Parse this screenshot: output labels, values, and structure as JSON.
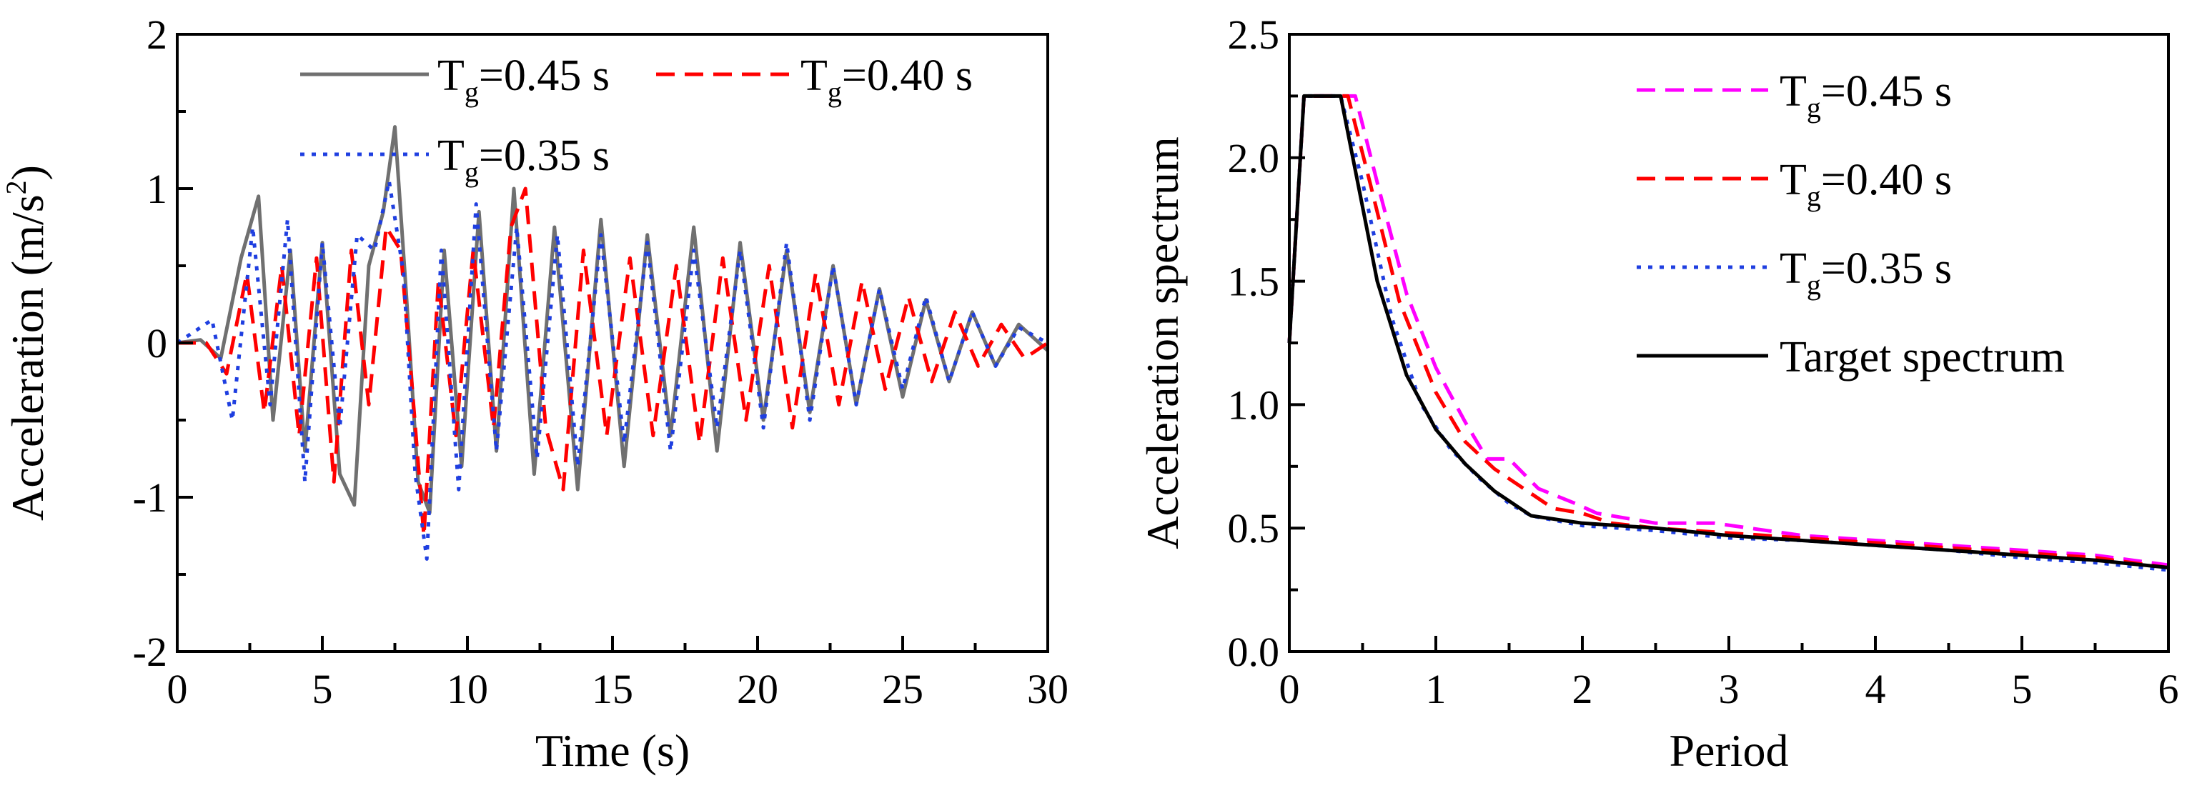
{
  "chart_data": [
    {
      "type": "line",
      "xlabel": "Time (s)",
      "ylabel_main": "Acceleration (m/s",
      "ylabel_sup": "2",
      "ylabel_close": ")",
      "xlim": [
        0,
        30
      ],
      "ylim": [
        -2,
        2
      ],
      "xticks": [
        0,
        5,
        10,
        15,
        20,
        25,
        30
      ],
      "yticks": [
        -2,
        -1,
        0,
        1,
        2
      ],
      "xtick_labels": [
        "0",
        "5",
        "10",
        "15",
        "20",
        "25",
        "30"
      ],
      "ytick_labels": [
        "-2",
        "-1",
        "0",
        "1",
        "2"
      ],
      "grid": false,
      "legend_placement": "top",
      "series": [
        {
          "name": "Tg=0.45 s",
          "label_main": "T",
          "label_sub": "g",
          "label_rest": "=0.45 s",
          "color": "#707070",
          "dash": "solid",
          "x": [
            0,
            0.8,
            1.5,
            2.2,
            2.8,
            3.3,
            3.9,
            4.4,
            5.0,
            5.6,
            6.1,
            6.6,
            7.1,
            7.5,
            7.9,
            8.3,
            8.7,
            9.2,
            9.8,
            10.4,
            11.0,
            11.6,
            12.3,
            13.0,
            13.8,
            14.6,
            15.4,
            16.2,
            17.0,
            17.8,
            18.6,
            19.4,
            20.2,
            21.0,
            21.8,
            22.6,
            23.4,
            24.2,
            25.0,
            25.8,
            26.6,
            27.4,
            28.2,
            29.0,
            30.0
          ],
          "y": [
            0,
            0.02,
            -0.1,
            0.55,
            0.95,
            -0.5,
            0.6,
            -0.7,
            0.65,
            -0.85,
            -1.05,
            0.5,
            0.85,
            1.4,
            0.3,
            -0.9,
            -1.1,
            0.6,
            -0.8,
            0.85,
            -0.7,
            1.0,
            -0.85,
            0.75,
            -0.95,
            0.8,
            -0.8,
            0.7,
            -0.6,
            0.75,
            -0.7,
            0.65,
            -0.5,
            0.6,
            -0.45,
            0.5,
            -0.4,
            0.35,
            -0.35,
            0.28,
            -0.25,
            0.2,
            -0.15,
            0.12,
            -0.05
          ]
        },
        {
          "name": "Tg=0.40 s",
          "label_main": "T",
          "label_sub": "g",
          "label_rest": "=0.40 s",
          "color": "#ff0000",
          "dash": "dashed",
          "x": [
            0,
            1.0,
            1.7,
            2.4,
            3.0,
            3.6,
            4.2,
            4.8,
            5.4,
            6.0,
            6.6,
            7.2,
            7.7,
            8.1,
            8.5,
            9.0,
            9.6,
            10.2,
            10.9,
            11.5,
            12.0,
            12.7,
            13.3,
            14.0,
            14.8,
            15.6,
            16.4,
            17.2,
            18.0,
            18.8,
            19.6,
            20.4,
            21.2,
            22.0,
            22.8,
            23.6,
            24.4,
            25.2,
            26.0,
            26.8,
            27.6,
            28.4,
            29.2,
            30.0
          ],
          "y": [
            0,
            0.0,
            -0.2,
            0.45,
            -0.45,
            0.5,
            -0.6,
            0.55,
            -0.9,
            0.6,
            -0.4,
            0.75,
            0.6,
            -0.3,
            -1.25,
            0.4,
            -0.6,
            0.6,
            -0.55,
            0.75,
            1.0,
            -0.55,
            -0.95,
            0.6,
            -0.6,
            0.55,
            -0.6,
            0.5,
            -0.65,
            0.55,
            -0.5,
            0.5,
            -0.55,
            0.45,
            -0.4,
            0.4,
            -0.3,
            0.3,
            -0.25,
            0.2,
            -0.15,
            0.12,
            -0.1,
            0.0
          ]
        },
        {
          "name": "Tg=0.35 s",
          "label_main": "T",
          "label_sub": "g",
          "label_rest": "=0.35 s",
          "color": "#1f3fe0",
          "dash": "dotted",
          "x": [
            0,
            1.2,
            1.9,
            2.6,
            3.2,
            3.8,
            4.4,
            5.0,
            5.6,
            6.2,
            6.8,
            7.3,
            7.8,
            8.2,
            8.6,
            9.1,
            9.7,
            10.3,
            11.0,
            11.7,
            12.4,
            13.1,
            13.8,
            14.6,
            15.4,
            16.2,
            17.0,
            17.8,
            18.6,
            19.4,
            20.2,
            21.0,
            21.8,
            22.6,
            23.4,
            24.2,
            25.0,
            25.8,
            26.6,
            27.4,
            28.2,
            29.0,
            30.0
          ],
          "y": [
            0,
            0.15,
            -0.5,
            0.75,
            -0.4,
            0.8,
            -0.9,
            0.65,
            -0.55,
            0.7,
            0.6,
            1.05,
            0.45,
            -0.85,
            -1.4,
            0.6,
            -0.95,
            0.9,
            -0.7,
            0.75,
            -0.75,
            0.7,
            -0.8,
            0.7,
            -0.65,
            0.65,
            -0.7,
            0.6,
            -0.55,
            0.6,
            -0.55,
            0.65,
            -0.5,
            0.5,
            -0.4,
            0.35,
            -0.3,
            0.3,
            -0.25,
            0.2,
            -0.15,
            0.1,
            0.0
          ]
        }
      ]
    },
    {
      "type": "line",
      "xlabel": "Period",
      "ylabel": "Acceleration spectrum",
      "xlim": [
        0,
        6
      ],
      "ylim": [
        0,
        2.5
      ],
      "xticks": [
        0,
        1,
        2,
        3,
        4,
        5,
        6
      ],
      "yticks": [
        0,
        0.5,
        1.0,
        1.5,
        2.0,
        2.5
      ],
      "xtick_labels": [
        "0",
        "1",
        "2",
        "3",
        "4",
        "5",
        "6"
      ],
      "ytick_labels": [
        "0.0",
        "0.5",
        "1.0",
        "1.5",
        "2.0",
        "2.5"
      ],
      "grid": false,
      "legend_placement": "top-right",
      "series": [
        {
          "name": "Tg=0.45 s",
          "label_main": "T",
          "label_sub": "g",
          "label_rest": "=0.45 s",
          "color": "#ff00ff",
          "dash": "dashed",
          "x": [
            0,
            0.1,
            0.45,
            0.6,
            0.8,
            1.0,
            1.2,
            1.35,
            1.5,
            1.7,
            1.95,
            2.1,
            2.5,
            2.9,
            3.5,
            4.0,
            4.5,
            5.0,
            5.5,
            6.0
          ],
          "y": [
            1.25,
            2.25,
            2.25,
            1.9,
            1.45,
            1.15,
            0.93,
            0.78,
            0.78,
            0.66,
            0.6,
            0.56,
            0.52,
            0.52,
            0.47,
            0.45,
            0.43,
            0.41,
            0.39,
            0.35
          ]
        },
        {
          "name": "Tg=0.40 s",
          "label_main": "T",
          "label_sub": "g",
          "label_rest": "=0.40 s",
          "color": "#ff0000",
          "dash": "dashed",
          "x": [
            0,
            0.1,
            0.4,
            0.55,
            0.75,
            1.0,
            1.2,
            1.4,
            1.6,
            1.8,
            2.0,
            2.2,
            2.5,
            3.0,
            3.5,
            4.0,
            4.5,
            5.0,
            5.5,
            6.0
          ],
          "y": [
            1.25,
            2.25,
            2.25,
            1.9,
            1.42,
            1.05,
            0.85,
            0.74,
            0.66,
            0.58,
            0.56,
            0.52,
            0.5,
            0.48,
            0.46,
            0.44,
            0.42,
            0.4,
            0.38,
            0.34
          ]
        },
        {
          "name": "Tg=0.35 s",
          "label_main": "T",
          "label_sub": "g",
          "label_rest": "=0.35 s",
          "color": "#1f3fe0",
          "dash": "dotted",
          "x": [
            0,
            0.1,
            0.35,
            0.5,
            0.7,
            0.9,
            1.1,
            1.3,
            1.5,
            1.65,
            2.0,
            2.5,
            3.0,
            3.5,
            4.0,
            4.5,
            5.0,
            5.5,
            6.0
          ],
          "y": [
            1.25,
            2.25,
            2.25,
            1.9,
            1.35,
            1.0,
            0.82,
            0.7,
            0.6,
            0.55,
            0.51,
            0.49,
            0.46,
            0.45,
            0.43,
            0.41,
            0.38,
            0.36,
            0.33
          ]
        },
        {
          "name": "Target spectrum",
          "label_main": "Target spectrum",
          "label_sub": "",
          "label_rest": "",
          "color": "#000000",
          "dash": "solid",
          "x": [
            0,
            0.1,
            0.35,
            0.45,
            0.6,
            0.8,
            1.0,
            1.2,
            1.4,
            1.65,
            2.0,
            2.5,
            3.0,
            3.5,
            4.0,
            4.5,
            5.0,
            5.5,
            6.0
          ],
          "y": [
            1.25,
            2.25,
            2.25,
            1.95,
            1.5,
            1.12,
            0.9,
            0.76,
            0.65,
            0.55,
            0.52,
            0.5,
            0.47,
            0.45,
            0.43,
            0.41,
            0.39,
            0.37,
            0.34
          ]
        }
      ]
    }
  ]
}
